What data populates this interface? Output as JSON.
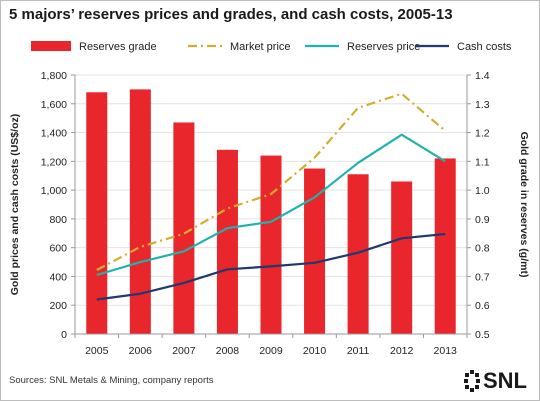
{
  "chart_data": {
    "type": "bar",
    "title": "5 majors’ reserves prices and grades, and cash costs, 2005-13",
    "categories": [
      "2005",
      "2006",
      "2007",
      "2008",
      "2009",
      "2010",
      "2011",
      "2012",
      "2013"
    ],
    "ylabel_left": "Gold prices and cash costs (US$/oz)",
    "ylabel_right": "Gold grade in reserves (g/mt)",
    "ylim_left": [
      0,
      1800
    ],
    "ylim_right": [
      0.5,
      1.4
    ],
    "yticks_left": [
      "0",
      "200",
      "400",
      "600",
      "800",
      "1,000",
      "1,200",
      "1,400",
      "1,600",
      "1,800"
    ],
    "yticks_right": [
      "0.5",
      "0.6",
      "0.7",
      "0.8",
      "0.9",
      "1.0",
      "1.1",
      "1.2",
      "1.3",
      "1.4"
    ],
    "grid": true,
    "legend_position": "top",
    "series": [
      {
        "name": "Reserves grade",
        "type": "bar",
        "axis": "right",
        "color": "#e8262b",
        "values": [
          1.34,
          1.35,
          1.235,
          1.14,
          1.12,
          1.075,
          1.055,
          1.03,
          1.11
        ]
      },
      {
        "name": "Market price",
        "type": "line",
        "style": "dash-dot",
        "axis": "left",
        "color": "#d4ad2e",
        "values": [
          445,
          605,
          697,
          872,
          972,
          1225,
          1572,
          1669,
          1412
        ]
      },
      {
        "name": "Reserves price",
        "type": "line",
        "axis": "left",
        "color": "#1fb3ae",
        "values": [
          410,
          500,
          575,
          735,
          780,
          950,
          1190,
          1385,
          1200
        ]
      },
      {
        "name": "Cash costs",
        "type": "line",
        "axis": "left",
        "color": "#1e3a6e",
        "values": [
          240,
          280,
          355,
          450,
          470,
          495,
          565,
          665,
          695
        ]
      }
    ]
  },
  "footer": {
    "source": "Sources: SNL Metals & Mining, company reports",
    "logo_text": "SNL"
  }
}
